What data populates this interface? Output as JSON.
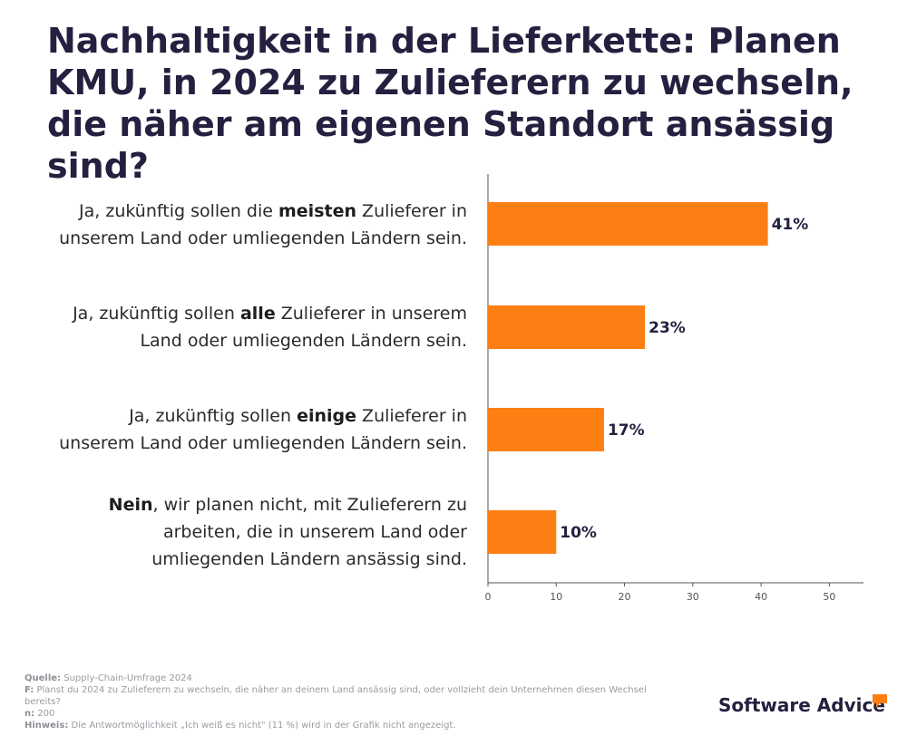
{
  "title": "Nachhaltigkeit in der Lieferkette: Planen KMU, in 2024 zu Zulieferern zu wechseln, die näher am eigenen Standort ansässig sind?",
  "categories": [
    {
      "pre": "Ja, zukünftig sollen die ",
      "bold": "meisten",
      "post": " Zulieferer in",
      "line2": "unserem Land oder umliegenden Ländern sein.",
      "line3": ""
    },
    {
      "pre": "Ja, zukünftig sollen ",
      "bold": "alle",
      "post": " Zulieferer in unserem",
      "line2": "Land oder umliegenden Ländern sein.",
      "line3": ""
    },
    {
      "pre": "Ja, zukünftig sollen ",
      "bold": "einige",
      "post": " Zulieferer in",
      "line2": "unserem Land oder umliegenden Ländern sein.",
      "line3": ""
    },
    {
      "pre": "",
      "bold": "Nein",
      "post": ", wir planen nicht, mit Zulieferern zu",
      "line2": "arbeiten, die in unserem Land oder",
      "line3": "umliegenden Ländern ansässig sind."
    }
  ],
  "chart_data": {
    "type": "bar",
    "orientation": "horizontal",
    "categories": [
      "Ja, zukünftig sollen die meisten Zulieferer in unserem Land oder umliegenden Ländern sein.",
      "Ja, zukünftig sollen alle Zulieferer in unserem Land oder umliegenden Ländern sein.",
      "Ja, zukünftig sollen einige Zulieferer in unserem Land oder umliegenden Ländern sein.",
      "Nein, wir planen nicht, mit Zulieferern zu arbeiten, die in unserem Land oder umliegenden Ländern ansässig sind."
    ],
    "values": [
      41,
      23,
      17,
      10
    ],
    "value_labels": [
      "41%",
      "23%",
      "17%",
      "10%"
    ],
    "xlim": [
      0,
      55
    ],
    "xticks": [
      0,
      10,
      20,
      30,
      40,
      50
    ],
    "xtick_labels": [
      "0",
      "10",
      "20",
      "30",
      "40",
      "50"
    ],
    "grid": false,
    "bar_color": "#fd7f13"
  },
  "footer": {
    "quelle_label": "Quelle:",
    "quelle_text": "Supply-Chain-Umfrage 2024",
    "f_label": "F:",
    "f_text": "Planst du 2024 zu Zulieferern zu wechseln, die näher an deinem Land ansässig sind, oder vollzieht dein Unternehmen diesen Wechsel bereits?",
    "n_label": "n:",
    "n_text": "200",
    "hinweis_label": "Hinweis:",
    "hinweis_text": "Die Antwortmöglichkeit „Ich weiß es nicht\" (11 %) wird in der Grafik nicht angezeigt."
  },
  "brand": {
    "name": "Software Advice",
    "accent": "#fd7f13",
    "text_color": "#23213f"
  }
}
